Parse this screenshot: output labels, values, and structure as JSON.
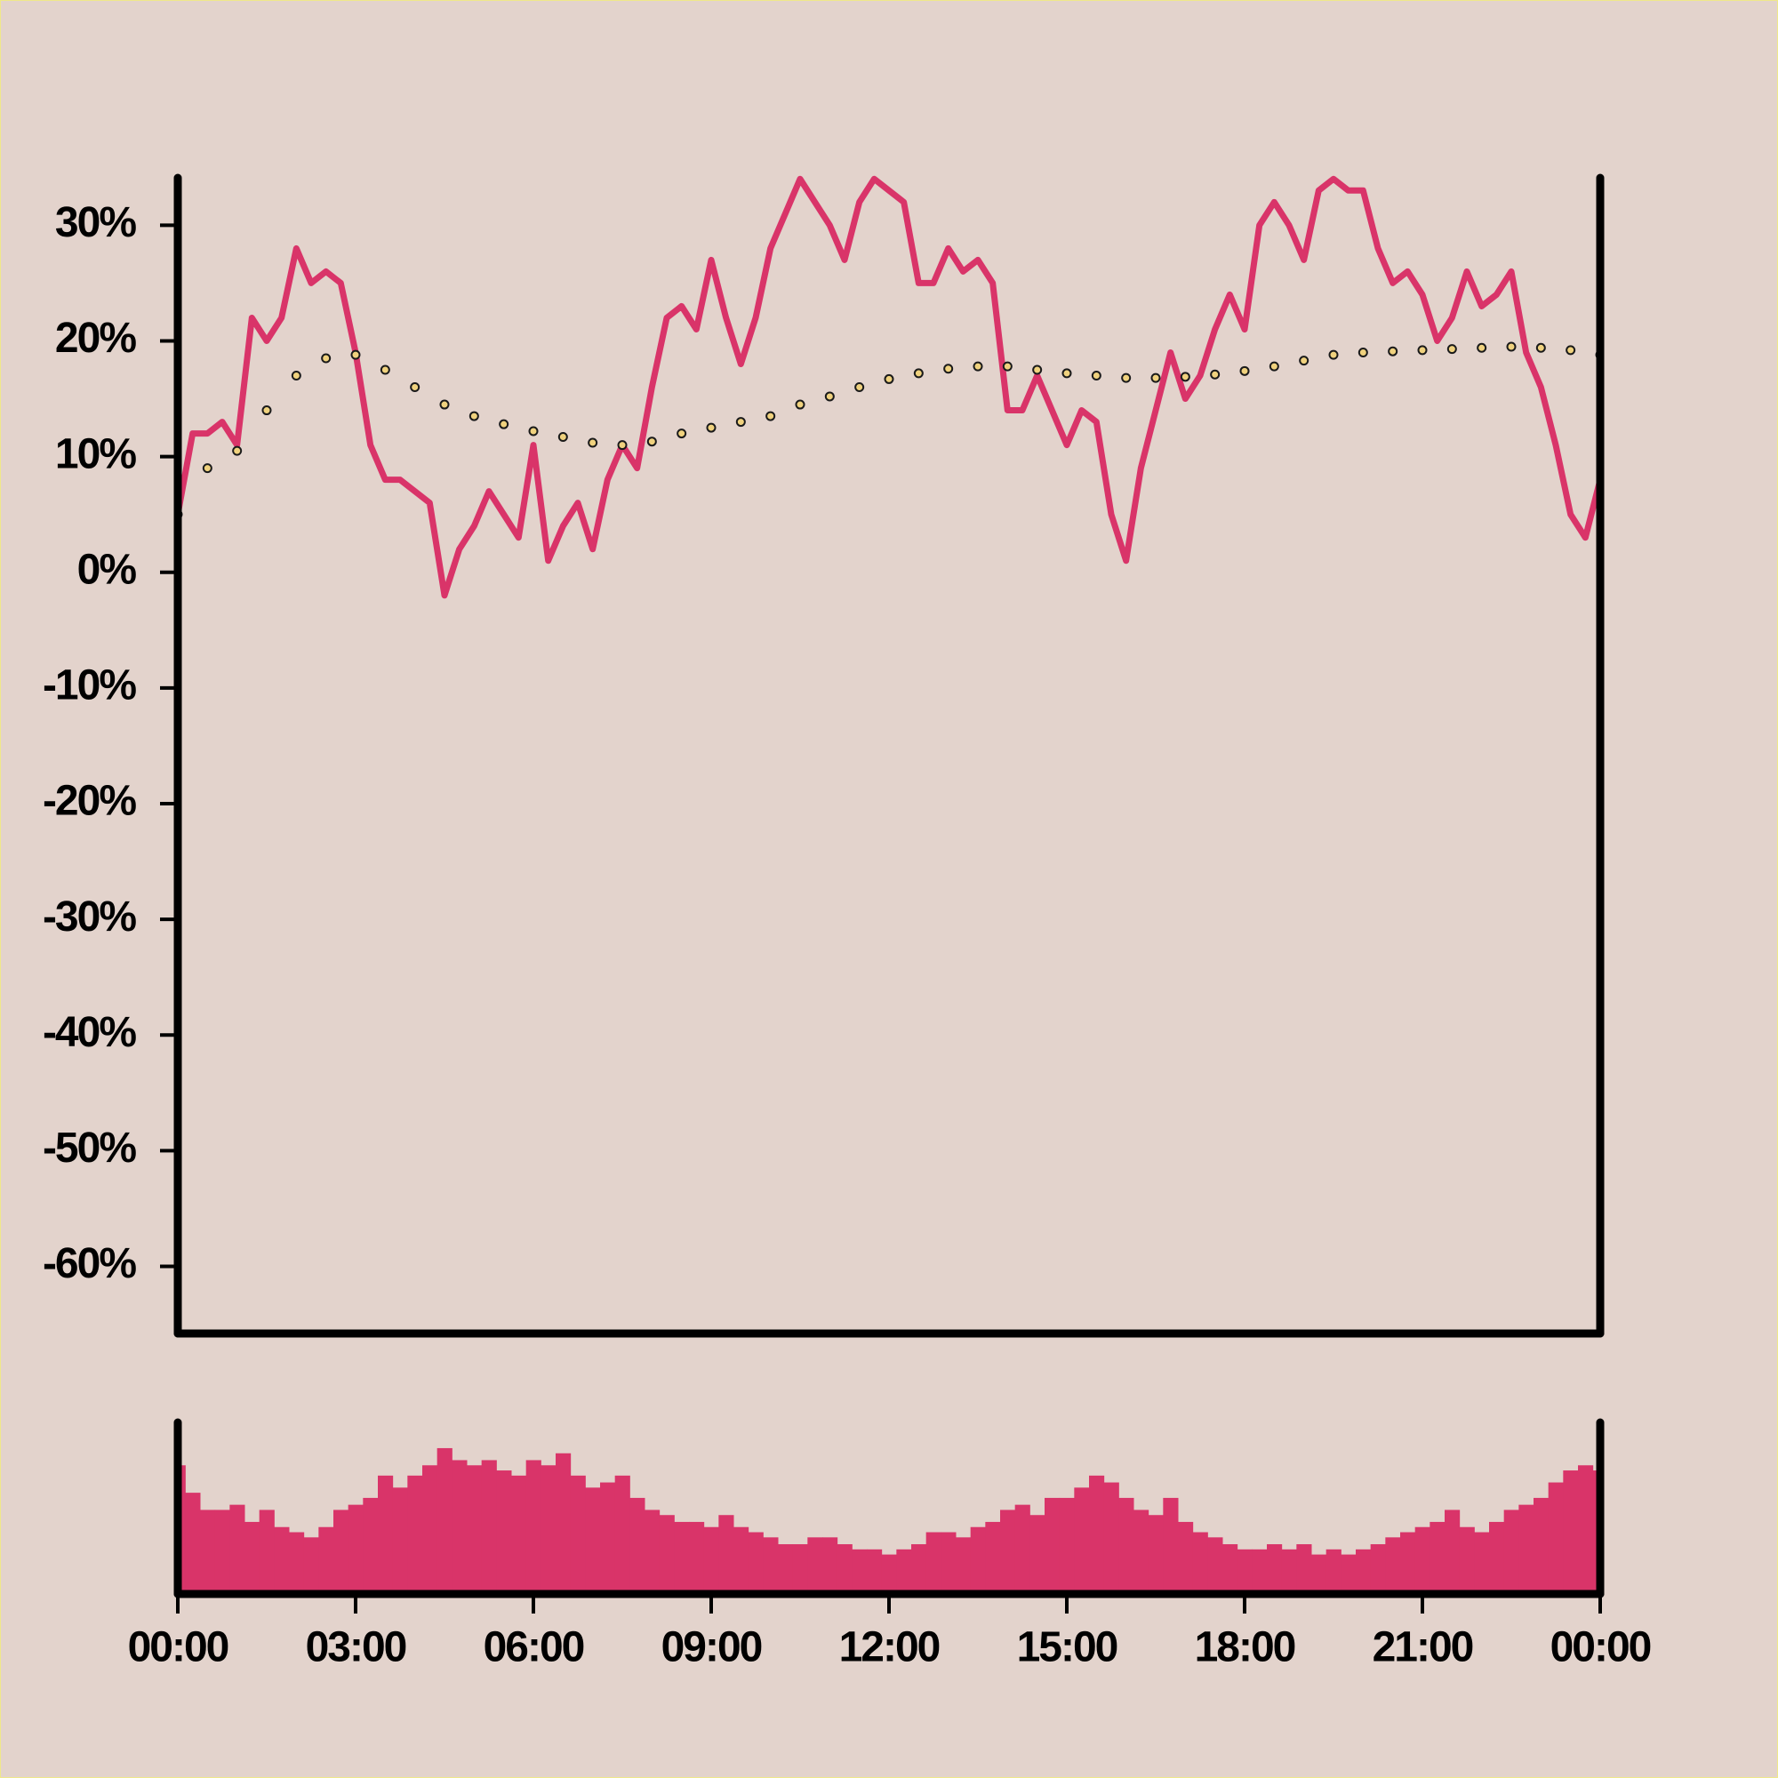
{
  "chart_data": [
    {
      "type": "line",
      "xlim": [
        0,
        24
      ],
      "ylim": [
        -65.8,
        34.1
      ],
      "yticks": [
        {
          "value": 30,
          "label": "30%"
        },
        {
          "value": 20,
          "label": "20%"
        },
        {
          "value": 10,
          "label": "10%"
        },
        {
          "value": 0,
          "label": "0%"
        },
        {
          "value": -10,
          "label": "-10%"
        },
        {
          "value": -20,
          "label": "-20%"
        },
        {
          "value": -30,
          "label": "-30%"
        },
        {
          "value": -40,
          "label": "-40%"
        },
        {
          "value": -50,
          "label": "-50%"
        },
        {
          "value": -60,
          "label": "-60%"
        }
      ],
      "series": [
        {
          "color": "#d93469",
          "style": "solid",
          "x": [
            0,
            0.25,
            0.5,
            0.75,
            1,
            1.25,
            1.5,
            1.75,
            2,
            2.25,
            2.5,
            2.75,
            3,
            3.25,
            3.5,
            3.75,
            4,
            4.25,
            4.5,
            4.75,
            5,
            5.25,
            5.5,
            5.75,
            6,
            6.25,
            6.5,
            6.75,
            7,
            7.25,
            7.5,
            7.75,
            8,
            8.25,
            8.5,
            8.75,
            9,
            9.25,
            9.5,
            9.75,
            10,
            10.25,
            10.5,
            10.75,
            11,
            11.25,
            11.5,
            11.75,
            12,
            12.25,
            12.5,
            12.75,
            13,
            13.25,
            13.5,
            13.75,
            14,
            14.25,
            14.5,
            14.75,
            15,
            15.25,
            15.5,
            15.75,
            16,
            16.25,
            16.5,
            16.75,
            17,
            17.25,
            17.5,
            17.75,
            18,
            18.25,
            18.5,
            18.75,
            19,
            19.25,
            19.5,
            19.75,
            20,
            20.25,
            20.5,
            20.75,
            21,
            21.25,
            21.5,
            21.75,
            22,
            22.25,
            22.5,
            22.75,
            23,
            23.25,
            23.5,
            23.75,
            24
          ],
          "values": [
            5,
            12,
            12,
            13,
            11,
            22,
            20,
            22,
            28,
            25,
            26,
            25,
            19,
            11,
            8,
            8,
            7,
            6,
            -2,
            2,
            4,
            7,
            5,
            3,
            11,
            1,
            4,
            6,
            2,
            8,
            11,
            9,
            16,
            22,
            23,
            21,
            27,
            22,
            18,
            22,
            28,
            31,
            34,
            32,
            30,
            27,
            32,
            34,
            33,
            32,
            25,
            25,
            28,
            26,
            27,
            25,
            14,
            14,
            17,
            14,
            11,
            14,
            13,
            5,
            1,
            9,
            14,
            19,
            15,
            17,
            21,
            24,
            21,
            30,
            32,
            30,
            27,
            33,
            34,
            33,
            33,
            28,
            25,
            26,
            24,
            20,
            22,
            26,
            23,
            24,
            26,
            19,
            16,
            11,
            5,
            3,
            8
          ]
        },
        {
          "color": "#f0d27e",
          "style": "dots",
          "x": [
            0,
            0.5,
            1,
            1.5,
            2,
            2.5,
            3,
            3.5,
            4,
            4.5,
            5,
            5.5,
            6,
            6.5,
            7,
            7.5,
            8,
            8.5,
            9,
            9.5,
            10,
            10.5,
            11,
            11.5,
            12,
            12.5,
            13,
            13.5,
            14,
            14.5,
            15,
            15.5,
            16,
            16.5,
            17,
            17.5,
            18,
            18.5,
            19,
            19.5,
            20,
            20.5,
            21,
            21.5,
            22,
            22.5,
            23,
            23.5,
            24
          ],
          "values": [
            5,
            9,
            10.5,
            14,
            17,
            18.5,
            18.8,
            17.5,
            16,
            14.5,
            13.5,
            12.8,
            12.2,
            11.7,
            11.2,
            11,
            11.3,
            12,
            12.5,
            13,
            13.5,
            14.5,
            15.2,
            16,
            16.7,
            17.2,
            17.6,
            17.8,
            17.8,
            17.5,
            17.2,
            17,
            16.8,
            16.8,
            16.9,
            17.1,
            17.4,
            17.8,
            18.3,
            18.8,
            19,
            19.1,
            19.2,
            19.3,
            19.4,
            19.5,
            19.4,
            19.2,
            18.8
          ]
        }
      ]
    },
    {
      "type": "bar",
      "color": "#d93469",
      "xlim": [
        0,
        24
      ],
      "ylim": [
        0,
        100
      ],
      "xticks": [
        {
          "value": 0,
          "label": "00:00"
        },
        {
          "value": 3,
          "label": "03:00"
        },
        {
          "value": 6,
          "label": "06:00"
        },
        {
          "value": 9,
          "label": "09:00"
        },
        {
          "value": 12,
          "label": "12:00"
        },
        {
          "value": 15,
          "label": "15:00"
        },
        {
          "value": 18,
          "label": "18:00"
        },
        {
          "value": 21,
          "label": "21:00"
        },
        {
          "value": 24,
          "label": "00:00"
        }
      ],
      "x": [
        0,
        0.25,
        0.5,
        0.75,
        1,
        1.25,
        1.5,
        1.75,
        2,
        2.25,
        2.5,
        2.75,
        3,
        3.25,
        3.5,
        3.75,
        4,
        4.25,
        4.5,
        4.75,
        5,
        5.25,
        5.5,
        5.75,
        6,
        6.25,
        6.5,
        6.75,
        7,
        7.25,
        7.5,
        7.75,
        8,
        8.25,
        8.5,
        8.75,
        9,
        9.25,
        9.5,
        9.75,
        10,
        10.25,
        10.5,
        10.75,
        11,
        11.25,
        11.5,
        11.75,
        12,
        12.25,
        12.5,
        12.75,
        13,
        13.25,
        13.5,
        13.75,
        14,
        14.25,
        14.5,
        14.75,
        15,
        15.25,
        15.5,
        15.75,
        16,
        16.25,
        16.5,
        16.75,
        17,
        17.25,
        17.5,
        17.75,
        18,
        18.25,
        18.5,
        18.75,
        19,
        19.25,
        19.5,
        19.75,
        20,
        20.25,
        20.5,
        20.75,
        21,
        21.25,
        21.5,
        21.75,
        22,
        22.25,
        22.5,
        22.75,
        23,
        23.25,
        23.5,
        23.75,
        24
      ],
      "values": [
        75,
        59,
        49,
        49,
        52,
        42,
        49,
        39,
        36,
        33,
        39,
        49,
        52,
        56,
        69,
        62,
        69,
        75,
        85,
        78,
        75,
        78,
        72,
        69,
        78,
        75,
        82,
        69,
        62,
        65,
        69,
        56,
        49,
        46,
        42,
        42,
        39,
        46,
        39,
        36,
        33,
        29,
        29,
        33,
        33,
        29,
        26,
        26,
        23,
        26,
        29,
        36,
        36,
        33,
        39,
        42,
        49,
        52,
        46,
        56,
        56,
        62,
        69,
        65,
        56,
        49,
        46,
        56,
        42,
        36,
        33,
        29,
        26,
        26,
        29,
        26,
        29,
        23,
        26,
        23,
        26,
        29,
        33,
        36,
        39,
        42,
        49,
        39,
        36,
        42,
        49,
        52,
        56,
        65,
        72,
        75,
        72
      ]
    }
  ]
}
